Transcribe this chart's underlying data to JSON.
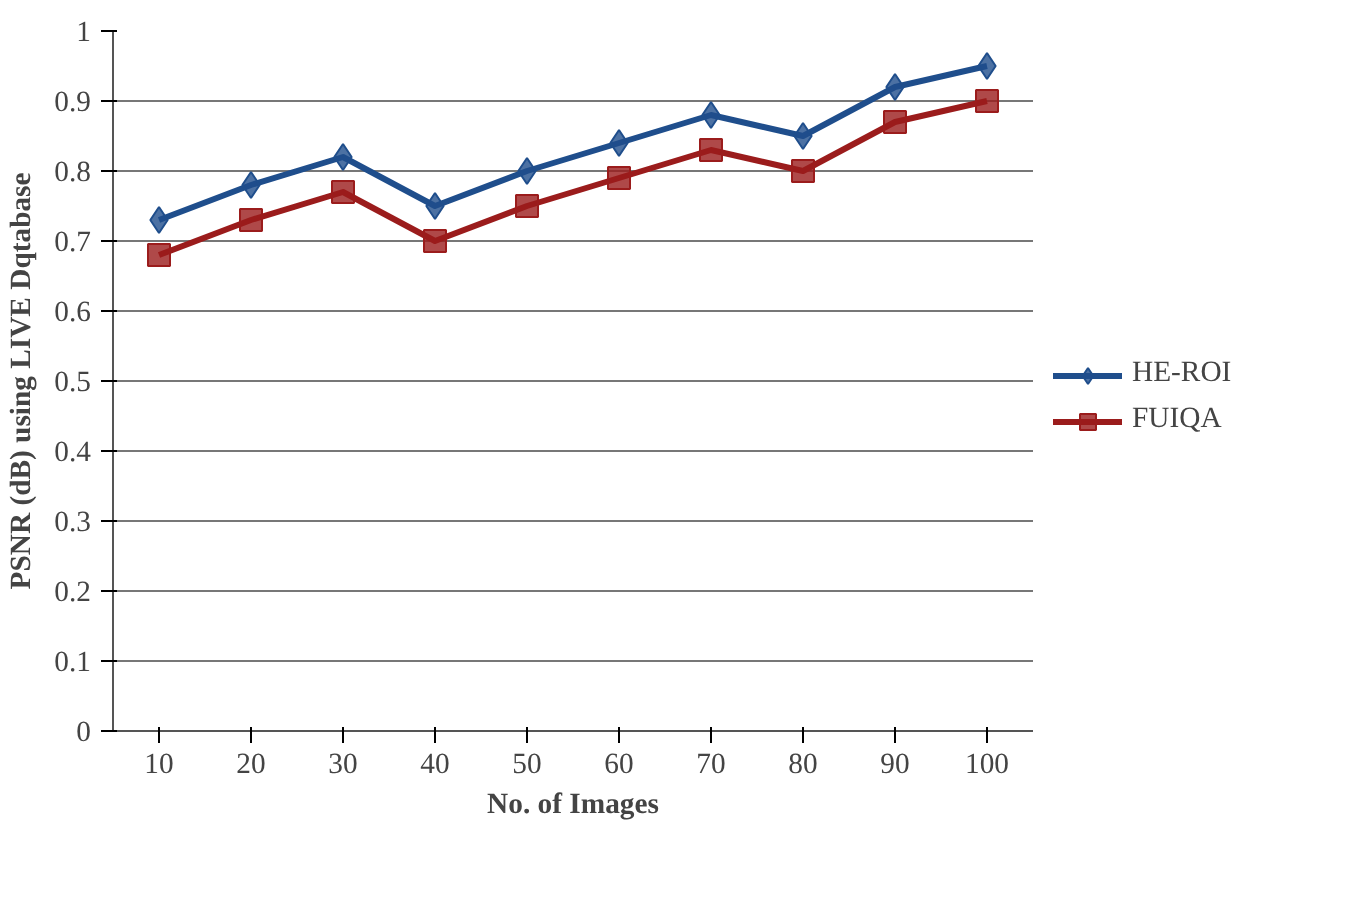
{
  "chart_data": {
    "type": "line",
    "xlabel": "No. of Images",
    "ylabel": "PSNR (dB) using LIVE Dqtabase",
    "categories": [
      "10",
      "20",
      "30",
      "40",
      "50",
      "60",
      "70",
      "80",
      "90",
      "100"
    ],
    "series": [
      {
        "name": "HE-ROI",
        "color": "#1f4e8c",
        "marker": "diamond",
        "values": [
          0.73,
          0.78,
          0.82,
          0.75,
          0.8,
          0.84,
          0.88,
          0.85,
          0.92,
          0.95
        ]
      },
      {
        "name": "FUIQA",
        "color": "#9b1c1c",
        "marker": "square",
        "values": [
          0.68,
          0.73,
          0.77,
          0.7,
          0.75,
          0.79,
          0.83,
          0.8,
          0.87,
          0.9
        ]
      }
    ],
    "ylim": [
      0,
      1
    ],
    "yticks": [
      0,
      0.1,
      0.2,
      0.3,
      0.4,
      0.5,
      0.6,
      0.7,
      0.8,
      0.9,
      1
    ],
    "grid": "y",
    "legend": "right",
    "line_style": "solid"
  }
}
